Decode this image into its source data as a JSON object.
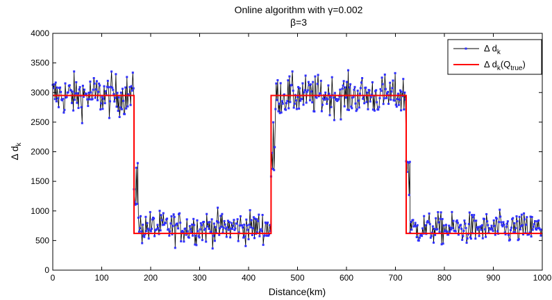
{
  "chart_data": {
    "type": "line",
    "title": "Online algorithm with γ=0.002",
    "subtitle": "β=3",
    "xlabel": "Distance(km)",
    "ylabel": "Δ d_k",
    "xlim": [
      0,
      1000
    ],
    "ylim": [
      0,
      4000
    ],
    "xticks": [
      0,
      100,
      200,
      300,
      400,
      500,
      600,
      700,
      800,
      900,
      1000
    ],
    "yticks": [
      0,
      500,
      1000,
      1500,
      2000,
      2500,
      3000,
      3500,
      4000
    ],
    "grid": false,
    "legend_position": "top-right",
    "legend": [
      {
        "base": "Δ d",
        "sub": "k",
        "tail": ""
      },
      {
        "base": "Δ d",
        "sub": "k",
        "tail": "(Q",
        "sub2": "true",
        "tail2": ")"
      }
    ],
    "series": [
      {
        "name": "Δ d_k",
        "line_color": "#000000",
        "marker_color": "#3030ff",
        "segments": [
          {
            "x_start": 0,
            "x_end": 166,
            "mean": 2950,
            "noise": 300
          },
          {
            "x_start": 166,
            "x_end": 175,
            "mean": 1500,
            "noise": 500
          },
          {
            "x_start": 175,
            "x_end": 446,
            "mean": 720,
            "noise": 230
          },
          {
            "x_start": 446,
            "x_end": 455,
            "mean": 1800,
            "noise": 600
          },
          {
            "x_start": 455,
            "x_end": 722,
            "mean": 2950,
            "noise": 280
          },
          {
            "x_start": 722,
            "x_end": 730,
            "mean": 1800,
            "noise": 600
          },
          {
            "x_start": 730,
            "x_end": 1000,
            "mean": 700,
            "noise": 220
          }
        ]
      },
      {
        "name": "Δ d_k(Q_true)",
        "color": "#ff0000",
        "x": [
          0,
          166,
          166,
          446,
          446,
          722,
          722,
          1000
        ],
        "y": [
          2950,
          2950,
          620,
          620,
          2950,
          2950,
          620,
          620
        ]
      }
    ]
  }
}
